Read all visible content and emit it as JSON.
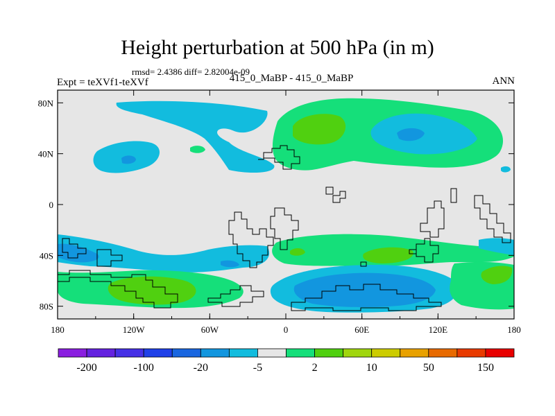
{
  "chart_data": {
    "type": "heatmap",
    "title": "Height perturbation at 500 hPa (in m)",
    "stats_text": "rmsd= 2.4386 diff= 2.82004e-09",
    "left_label": "Expt = teXVf1-teXVf",
    "center_label": "415_0_MaBP - 415_0_MaBP",
    "right_label": "ANN",
    "x_ticks": [
      "180",
      "120W",
      "60W",
      "0",
      "60E",
      "120E",
      "180"
    ],
    "y_ticks": [
      "80N",
      "40N",
      "0",
      "40S",
      "80S"
    ],
    "x_range": [
      -180,
      180
    ],
    "y_range": [
      -90,
      90
    ],
    "colorbar": {
      "colors": [
        "#8a1ee0",
        "#6422e0",
        "#4630e6",
        "#1f40e8",
        "#1966e0",
        "#1296df",
        "#12bcde",
        "#e6e6e6",
        "#15df7a",
        "#50d010",
        "#a0d60e",
        "#cccc00",
        "#e8a100",
        "#e86a00",
        "#e83a00",
        "#e80000"
      ],
      "labels": [
        "-200",
        "-100",
        "-20",
        "-5",
        "2",
        "10",
        "50",
        "150"
      ]
    }
  }
}
